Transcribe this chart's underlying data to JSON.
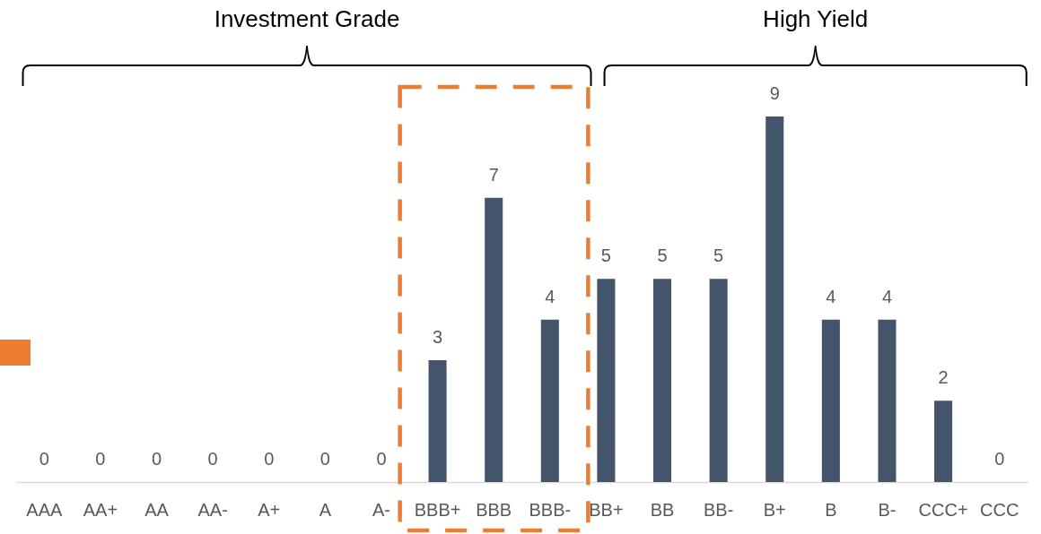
{
  "chart_data": {
    "type": "bar",
    "categories": [
      "AAA",
      "AA+",
      "AA",
      "AA-",
      "A+",
      "A",
      "A-",
      "BBB+",
      "BBB",
      "BBB-",
      "BB+",
      "BB",
      "BB-",
      "B+",
      "B",
      "B-",
      "CCC+",
      "CCC"
    ],
    "values": [
      0,
      0,
      0,
      0,
      0,
      0,
      0,
      3,
      7,
      4,
      5,
      5,
      5,
      9,
      4,
      4,
      2,
      0
    ],
    "color": "#44546a",
    "data_labels": true,
    "tick_labels": "x",
    "annotations": [
      "Investment Grade",
      "High Yield"
    ]
  }
}
